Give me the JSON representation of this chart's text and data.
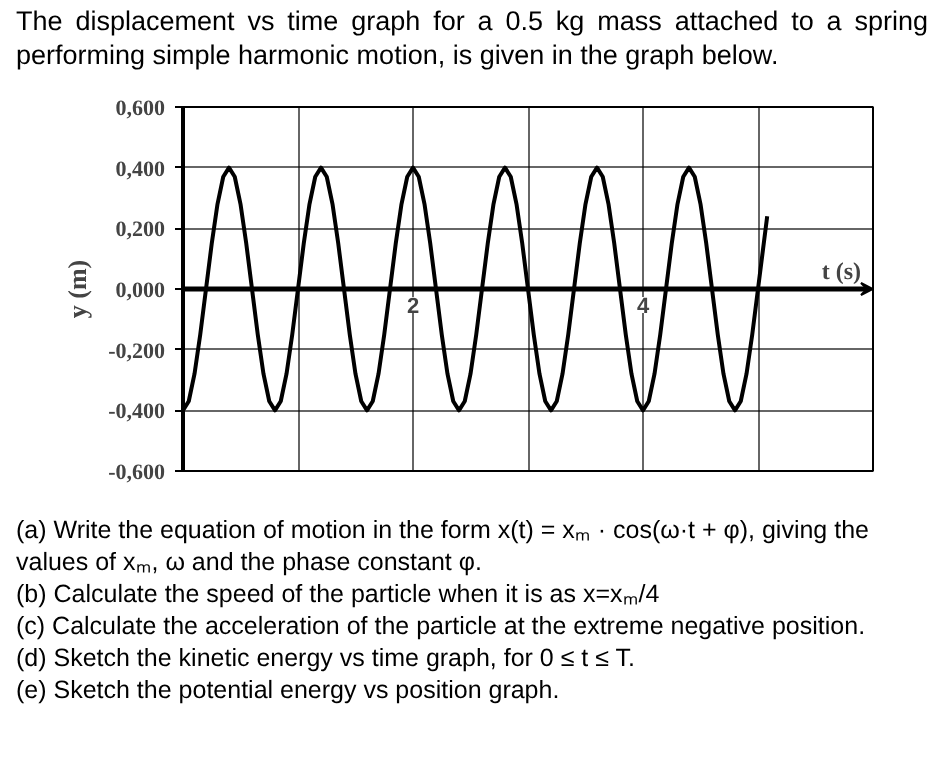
{
  "chart_data": {
    "type": "line",
    "title": "The displacement vs time graph for a 0.5 kg mass attached to a spring performing simple harmonic motion, is given in the graph below.",
    "xlabel": "t (s)",
    "ylabel": "y (m)",
    "color": "#000000",
    "grid": true,
    "xlim": [
      0,
      6
    ],
    "xticks": [
      {
        "value": 1,
        "label": null
      },
      2,
      {
        "value": 3,
        "label": null
      },
      4,
      {
        "value": 5,
        "label": null
      },
      {
        "value": 6,
        "label": null
      }
    ],
    "ylim": [
      -0.6,
      0.6
    ],
    "yticks": [
      {
        "value": -0.6,
        "label": "-0,600"
      },
      {
        "value": -0.4,
        "label": "-0,400"
      },
      {
        "value": -0.2,
        "label": "-0,200"
      },
      {
        "value": 0,
        "label": "0,000"
      },
      {
        "value": 0.2,
        "label": "0,200"
      },
      {
        "value": 0.4,
        "label": "0,400"
      },
      {
        "value": 0.6,
        "label": "0,600"
      }
    ],
    "x": [
      0,
      0.05,
      0.1,
      0.15,
      0.2,
      0.25,
      0.3,
      0.35,
      0.4,
      0.45,
      0.5,
      0.55,
      0.6,
      0.65,
      0.7,
      0.75,
      0.8,
      0.85,
      0.9,
      0.95,
      1,
      1.05,
      1.1,
      1.15,
      1.2,
      1.25,
      1.3,
      1.35,
      1.4,
      1.45,
      1.5,
      1.55,
      1.6,
      1.65,
      1.7,
      1.75,
      1.8,
      1.85,
      1.9,
      1.95,
      2,
      2.05,
      2.1,
      2.15,
      2.2,
      2.25,
      2.3,
      2.35,
      2.4,
      2.45,
      2.5,
      2.55,
      2.6,
      2.65,
      2.7,
      2.75,
      2.8,
      2.85,
      2.9,
      2.95,
      3,
      3.05,
      3.1,
      3.15,
      3.2,
      3.25,
      3.3,
      3.35,
      3.4,
      3.45,
      3.5,
      3.55,
      3.6,
      3.65,
      3.7,
      3.75,
      3.8,
      3.85,
      3.9,
      3.95,
      4,
      4.05,
      4.1,
      4.15,
      4.2,
      4.25,
      4.3,
      4.35,
      4.4,
      4.45,
      4.5,
      4.55,
      4.6,
      4.65,
      4.7,
      4.75,
      4.8,
      4.85,
      4.9,
      4.95,
      5,
      5.05,
      5.08
    ],
    "values": [
      -0.4,
      -0.37,
      -0.28,
      -0.15,
      0,
      0.15,
      0.28,
      0.37,
      0.4,
      0.37,
      0.28,
      0.15,
      0,
      -0.15,
      -0.28,
      -0.37,
      -0.4,
      -0.37,
      -0.28,
      -0.15,
      0,
      0.15,
      0.28,
      0.37,
      0.4,
      0.37,
      0.28,
      0.15,
      0,
      -0.15,
      -0.28,
      -0.37,
      -0.4,
      -0.37,
      -0.28,
      -0.15,
      0,
      0.15,
      0.28,
      0.37,
      0.4,
      0.37,
      0.28,
      0.15,
      0,
      -0.15,
      -0.28,
      -0.37,
      -0.4,
      -0.37,
      -0.28,
      -0.15,
      0,
      0.15,
      0.28,
      0.37,
      0.4,
      0.37,
      0.28,
      0.15,
      0,
      -0.15,
      -0.28,
      -0.37,
      -0.4,
      -0.37,
      -0.28,
      -0.15,
      0,
      0.15,
      0.28,
      0.37,
      0.4,
      0.37,
      0.28,
      0.15,
      0,
      -0.15,
      -0.28,
      -0.37,
      -0.4,
      -0.37,
      -0.28,
      -0.15,
      0,
      0.15,
      0.28,
      0.37,
      0.4,
      0.37,
      0.28,
      0.15,
      0,
      -0.15,
      -0.28,
      -0.37,
      -0.4,
      -0.37,
      -0.28,
      -0.15,
      0,
      0.15,
      0.24
    ],
    "annotations": [
      "(a) Write the equation of motion in the form x(t) = xₘ · cos(ω·t + φ), giving the values of xₘ, ω and the phase constant φ.",
      "(b) Calculate the speed of the particle when it is as x=xₘ/4",
      "(c) Calculate the acceleration of the particle at the extreme negative position.",
      "(d) Sketch the kinetic energy vs time graph, for 0 ≤ t ≤ T.",
      "(e) Sketch the potential energy vs position graph."
    ]
  }
}
